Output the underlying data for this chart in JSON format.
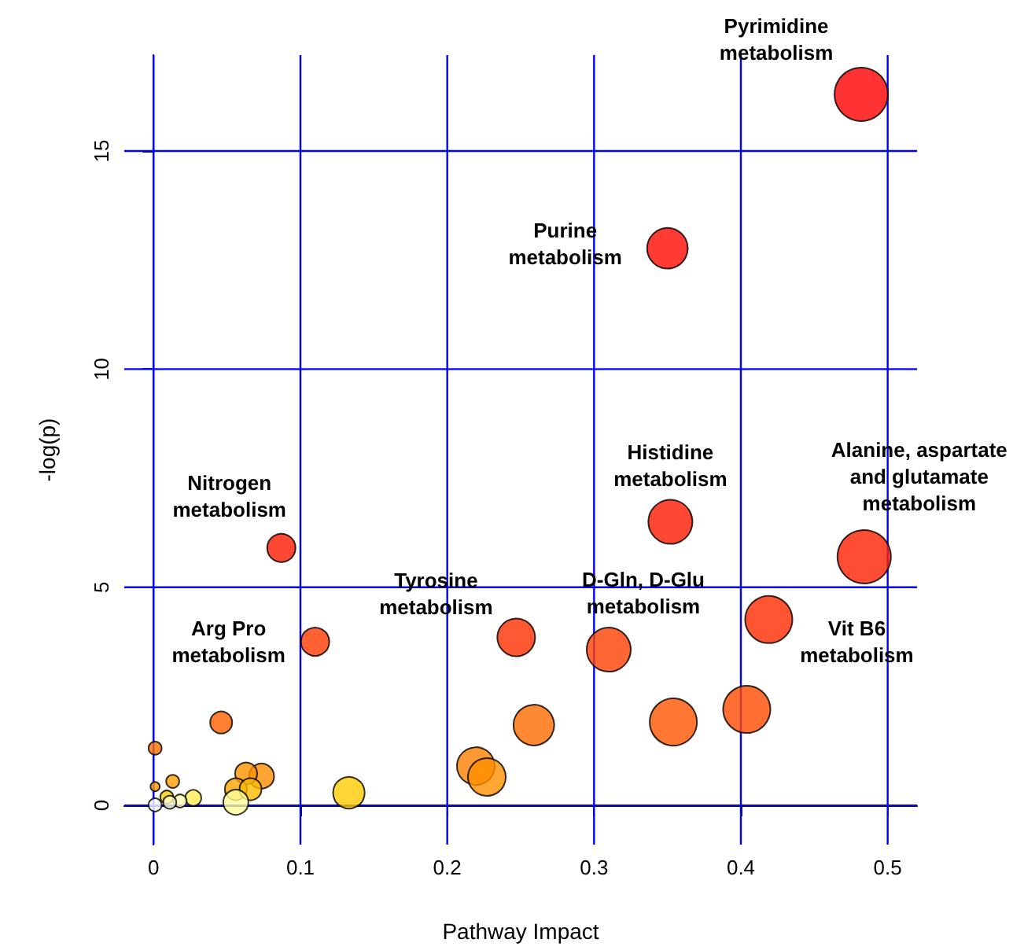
{
  "chart_data": {
    "type": "bubble",
    "xlabel": "Pathway Impact",
    "ylabel": "-log(p)",
    "x": [
      0.482,
      0.35,
      0.352,
      0.484,
      0.087,
      0.419,
      0.247,
      0.11,
      0.31,
      0.404,
      0.354,
      0.259,
      0.046,
      0.001,
      0.2195,
      0.227,
      0.0735,
      0.063,
      0.056,
      0.066,
      0.133,
      0.013,
      0.001,
      0.009,
      0.027,
      0.056,
      0.018,
      0.011,
      0.001
    ],
    "values": [
      16.3,
      12.77,
      6.5,
      5.7,
      5.9,
      4.26,
      3.85,
      3.75,
      3.57,
      2.2,
      1.91,
      1.84,
      1.9,
      1.31,
      0.9,
      0.65,
      0.67,
      0.73,
      0.37,
      0.37,
      0.29,
      0.55,
      0.43,
      0.19,
      0.17,
      0.07,
      0.1,
      0.07,
      0.01
    ],
    "sizes": [
      1.0,
      0.58,
      0.68,
      1.0,
      0.28,
      0.78,
      0.5,
      0.28,
      0.68,
      0.78,
      0.78,
      0.58,
      0.17,
      0.06,
      0.5,
      0.5,
      0.22,
      0.17,
      0.17,
      0.17,
      0.35,
      0.06,
      0.03,
      0.06,
      0.09,
      0.22,
      0.06,
      0.06,
      0.06
    ],
    "colors": [
      "#ff0000",
      "#ff0a00",
      "#ff1a00",
      "#ff2000",
      "#ff1a00",
      "#ff2a00",
      "#ff3000",
      "#ff3a00",
      "#ff4000",
      "#ff4a00",
      "#ff5500",
      "#ff6a00",
      "#ff6000",
      "#ff7000",
      "#ff8000",
      "#ff9000",
      "#ff8c00",
      "#ff9400",
      "#ffa500",
      "#ffbb00",
      "#ffcc00",
      "#ffa000",
      "#ff9a00",
      "#ffd000",
      "#ffee55",
      "#ffff99",
      "#ffffb0",
      "#ffffcc",
      "#ffffff"
    ],
    "xlim": [
      -0.02,
      0.52
    ],
    "xticks": [
      0,
      0.1,
      0.2,
      0.3,
      0.4,
      0.5
    ],
    "ylim": [
      -0.9,
      17.2
    ],
    "yticks": [
      0,
      5,
      10,
      15
    ],
    "grid": true,
    "marker": "circle",
    "annotations": [
      {
        "text": "Pyrimidine\nmetabolism",
        "x": 0.482,
        "y": 16.3
      },
      {
        "text": "Purine\nmetabolism",
        "x": 0.35,
        "y": 12.77
      },
      {
        "text": "Histidine\nmetabolism",
        "x": 0.352,
        "y": 6.5
      },
      {
        "text": "Alanine, aspartate\nand glutamate\nmetabolism",
        "x": 0.484,
        "y": 5.7
      },
      {
        "text": "Nitrogen\nmetabolism",
        "x": 0.087,
        "y": 5.9
      },
      {
        "text": "Vit B6\nmetabolism",
        "x": 0.419,
        "y": 4.26
      },
      {
        "text": "Tyrosine\nmetabolism",
        "x": 0.247,
        "y": 3.85
      },
      {
        "text": "Arg Pro\nmetabolism",
        "x": 0.11,
        "y": 3.75
      },
      {
        "text": "D-Gln, D-Glu\nmetabolism",
        "x": 0.31,
        "y": 3.57
      }
    ]
  }
}
